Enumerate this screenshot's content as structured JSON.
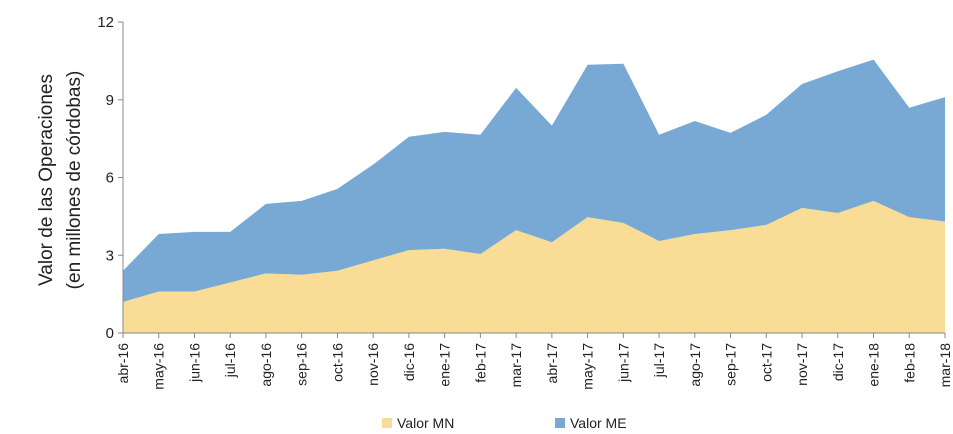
{
  "chart_data": {
    "type": "stacked_area",
    "ylabel": [
      "Valor de las Operaciones",
      "(en millones de córdobas)"
    ],
    "categories": [
      "abr-16",
      "may-16",
      "jun-16",
      "jul-16",
      "ago-16",
      "sep-16",
      "oct-16",
      "nov-16",
      "dic-16",
      "ene-17",
      "feb-17",
      "mar-17",
      "abr-17",
      "may-17",
      "jun-17",
      "jul-17",
      "ago-17",
      "sep-17",
      "oct-17",
      "nov-17",
      "dic-17",
      "ene-18",
      "feb-18",
      "mar-18"
    ],
    "series": [
      {
        "name": "Valor MN",
        "color": "#f9dc95",
        "values": [
          1.2,
          1.6,
          1.6,
          1.95,
          2.3,
          2.25,
          2.4,
          2.8,
          3.2,
          3.25,
          3.05,
          3.97,
          3.5,
          4.47,
          4.25,
          3.55,
          3.82,
          3.97,
          4.17,
          4.83,
          4.63,
          5.1,
          4.47,
          4.3
        ]
      },
      {
        "name": "Valor ME",
        "color": "#78a9d4",
        "values": [
          1.2,
          2.22,
          2.3,
          1.95,
          2.68,
          2.85,
          3.16,
          3.7,
          4.37,
          4.51,
          4.6,
          5.49,
          4.5,
          5.88,
          6.14,
          4.1,
          4.36,
          3.75,
          4.25,
          4.78,
          5.47,
          5.45,
          4.22,
          4.8
        ]
      }
    ],
    "ylim": [
      0,
      12
    ],
    "yticks": [
      0,
      3,
      6,
      9,
      12
    ],
    "grid": false,
    "legend": "bottom"
  }
}
